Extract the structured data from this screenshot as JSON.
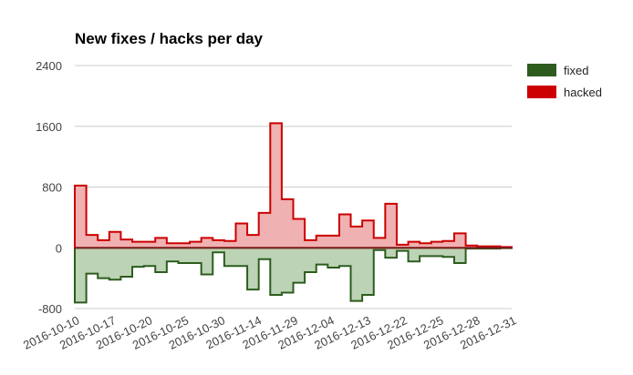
{
  "chart_data": {
    "type": "area",
    "title": "New fixes / hacks per day",
    "xlabel": "",
    "ylabel": "",
    "ylim": [
      -800,
      2400
    ],
    "yticks": [
      2400,
      1600,
      800,
      0,
      -800
    ],
    "xtick_labels": [
      "2016-10-10",
      "2016-10-17",
      "2016-10-20",
      "2016-10-25",
      "2016-10-30",
      "2016-11-14",
      "2016-11-29",
      "2016-12-04",
      "2016-12-13",
      "2016-12-22",
      "2016-12-25",
      "2016-12-28",
      "2016-12-31"
    ],
    "grid": true,
    "legend_position": "right",
    "series": [
      {
        "name": "hacked",
        "color": "#cc0000",
        "fill": "#efb1b1",
        "values": [
          820,
          170,
          100,
          210,
          110,
          80,
          80,
          130,
          60,
          60,
          80,
          130,
          100,
          90,
          320,
          170,
          460,
          1640,
          640,
          380,
          100,
          160,
          160,
          440,
          280,
          360,
          130,
          580,
          40,
          80,
          60,
          80,
          90,
          190,
          30,
          20,
          20,
          10
        ]
      },
      {
        "name": "fixed",
        "color": "#2d5c1e",
        "fill": "#bcd3b6",
        "values": [
          -720,
          -340,
          -400,
          -420,
          -380,
          -250,
          -240,
          -320,
          -180,
          -200,
          -200,
          -350,
          -60,
          -240,
          -240,
          -550,
          -150,
          -620,
          -590,
          -460,
          -320,
          -220,
          -260,
          -240,
          -700,
          -620,
          -30,
          -130,
          -40,
          -180,
          -110,
          -110,
          -120,
          -200,
          -10,
          -10,
          -10,
          -5
        ]
      }
    ]
  }
}
